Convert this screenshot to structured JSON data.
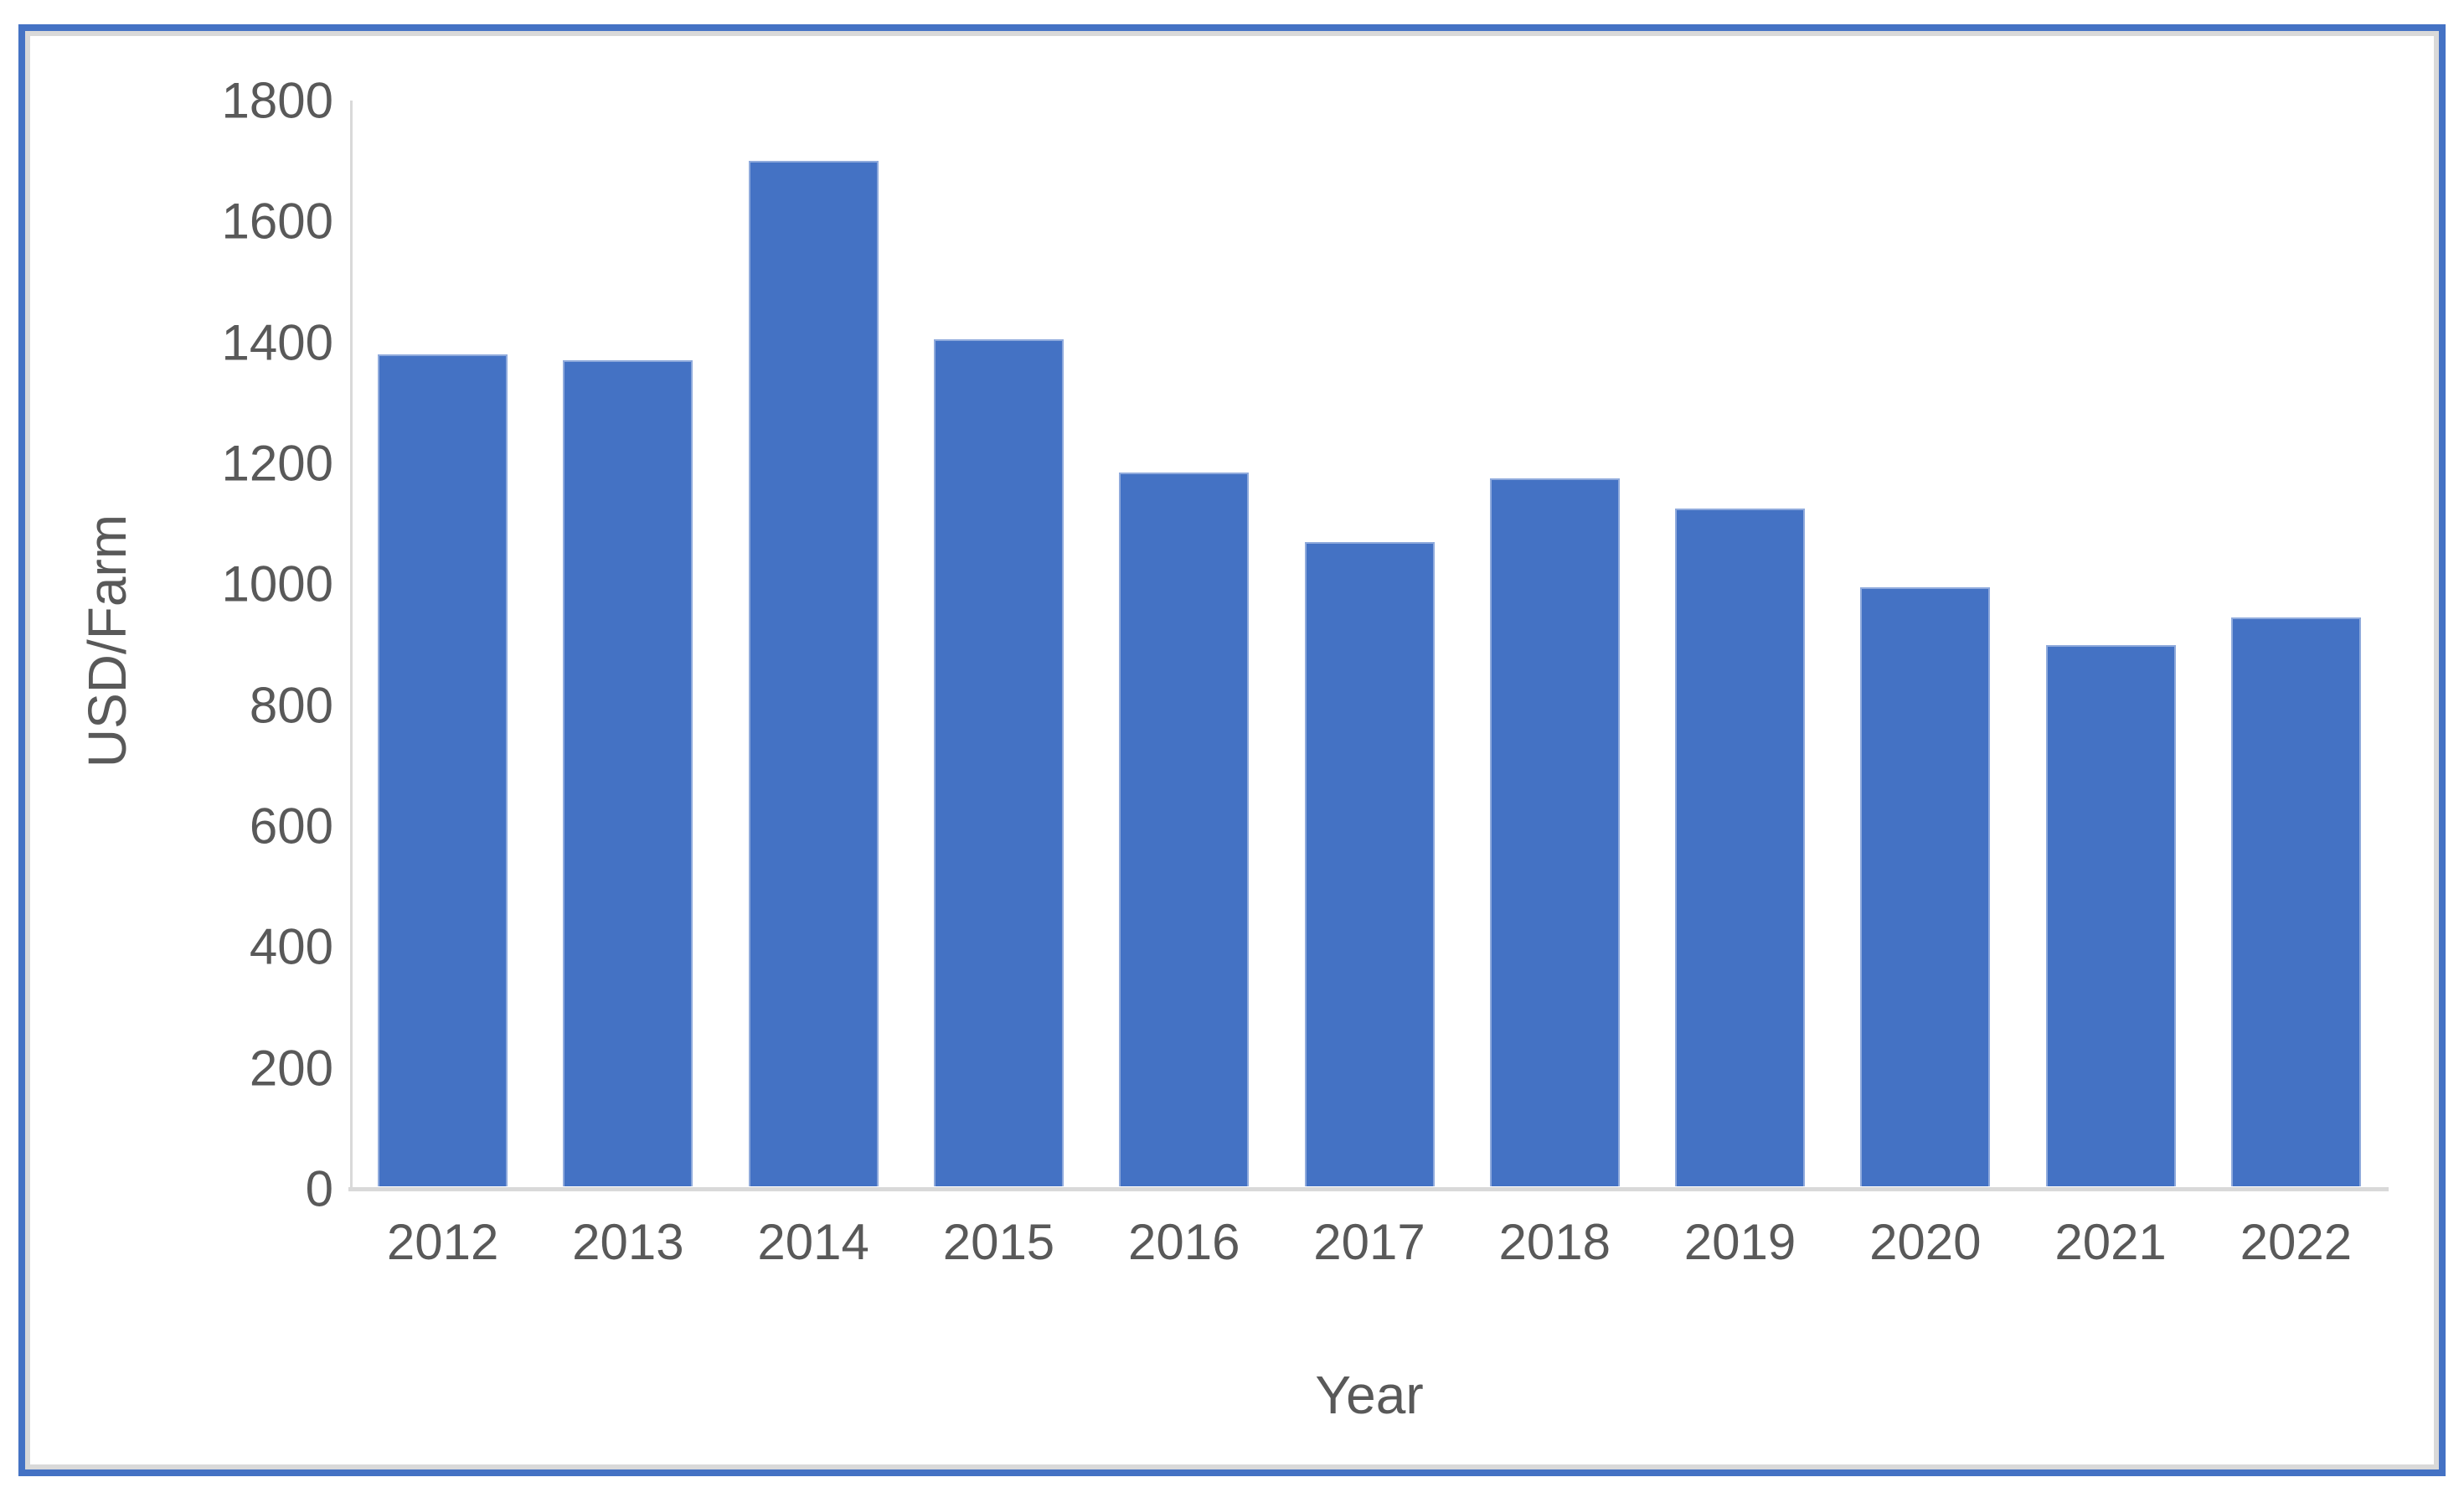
{
  "figure": {
    "background": "#FFFFFF",
    "frame_border_color": "#4472C4",
    "frame_inner_border_color": "#D9D9D9"
  },
  "chart_data": {
    "type": "bar",
    "title": "",
    "categories": [
      "2012",
      "2013",
      "2014",
      "2015",
      "2016",
      "2017",
      "2018",
      "2019",
      "2020",
      "2021",
      "2022"
    ],
    "values": [
      1380,
      1370,
      1700,
      1405,
      1185,
      1070,
      1175,
      1125,
      995,
      900,
      945
    ],
    "xlabel": "Year",
    "ylabel": "USD/Farm",
    "ylim": [
      0,
      1800
    ],
    "yticks": [
      0,
      200,
      400,
      600,
      800,
      1000,
      1200,
      1400,
      1600,
      1800
    ],
    "grid": false,
    "legend": "none",
    "bar_color": "#4472C4",
    "bar_border_color": "#8FAADC",
    "axis_line_color": "#D9D9D9",
    "label_color": "#595959"
  }
}
